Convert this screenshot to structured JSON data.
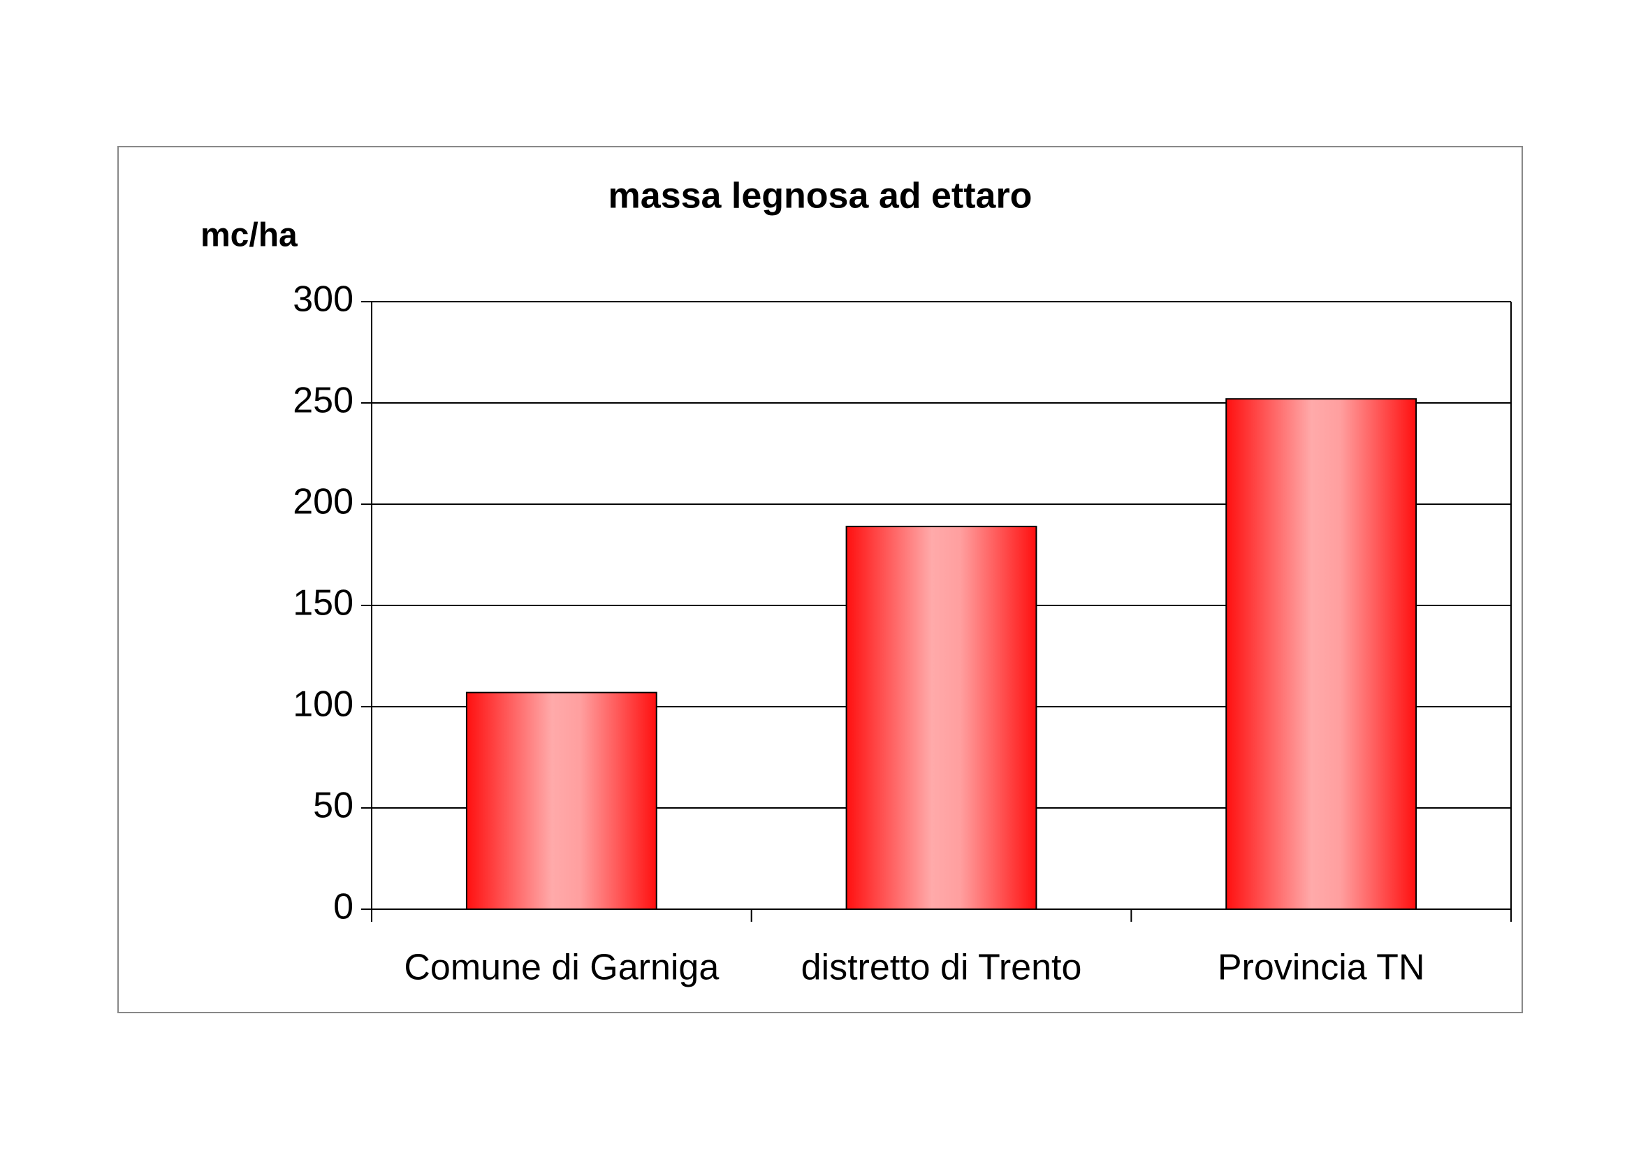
{
  "chart_data": {
    "type": "bar",
    "title": "massa legnosa ad ettaro",
    "y_label": "mc/ha",
    "categories": [
      "Comune di Garniga",
      "distretto di Trento",
      "Provincia TN"
    ],
    "values": [
      107,
      189,
      252
    ],
    "color": "#ff0000",
    "ylim": [
      0,
      300
    ],
    "yticks": [
      0,
      50,
      100,
      150,
      200,
      250,
      300
    ],
    "grid": true
  }
}
